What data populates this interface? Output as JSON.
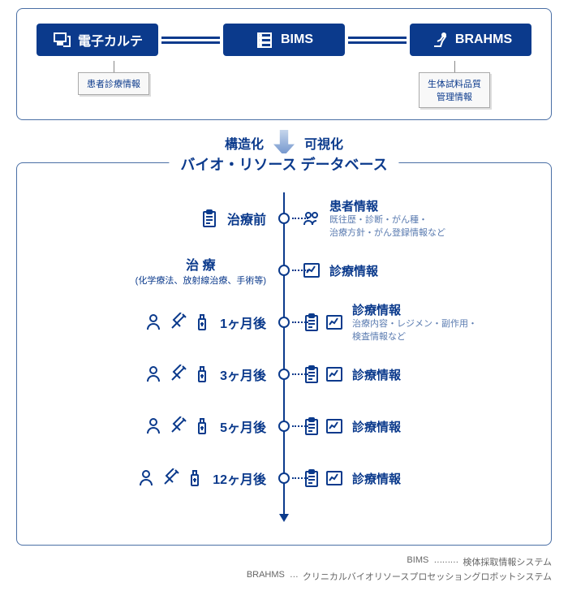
{
  "colors": {
    "primary": "#0b3a8c",
    "border": "#4a6fa5",
    "sub": "#5a7bb0",
    "bg": "#ffffff"
  },
  "top": {
    "systems": [
      {
        "label": "電子カルテ",
        "icon": "pc",
        "sub": "患者診療情報"
      },
      {
        "label": "BIMS",
        "icon": "server",
        "sub": null
      },
      {
        "label": "BRAHMS",
        "icon": "robot",
        "sub": "生体試料品質\n管理情報"
      }
    ]
  },
  "mid": {
    "left": "構造化",
    "right": "可視化"
  },
  "db": {
    "title": "バイオ・リソース データベース",
    "rows": [
      {
        "stage": "治療前",
        "sub": null,
        "leftIcons": [
          "clipboard"
        ],
        "rightIcons": [
          "people"
        ],
        "rtitle": "患者情報",
        "rdesc": "既往歴・診断・がん種・\n治療方針・がん登録情報など"
      },
      {
        "stage": "治 療",
        "sub": "(化学療法、放射線治療、手術等)",
        "leftIcons": [],
        "rightIcons": [
          "chart"
        ],
        "rtitle": "診療情報",
        "rdesc": null
      },
      {
        "stage": "1ヶ月後",
        "sub": null,
        "leftIcons": [
          "person",
          "syringe",
          "bottle"
        ],
        "rightIcons": [
          "clipboard",
          "chart"
        ],
        "rtitle": "診療情報",
        "rdesc": "治療内容・レジメン・副作用・\n検査情報など"
      },
      {
        "stage": "3ヶ月後",
        "sub": null,
        "leftIcons": [
          "person",
          "syringe",
          "bottle"
        ],
        "rightIcons": [
          "clipboard",
          "chart"
        ],
        "rtitle": "診療情報",
        "rdesc": null
      },
      {
        "stage": "5ヶ月後",
        "sub": null,
        "leftIcons": [
          "person",
          "syringe",
          "bottle"
        ],
        "rightIcons": [
          "clipboard",
          "chart"
        ],
        "rtitle": "診療情報",
        "rdesc": null
      },
      {
        "stage": "12ヶ月後",
        "sub": null,
        "leftIcons": [
          "person",
          "syringe",
          "bottle"
        ],
        "rightIcons": [
          "clipboard",
          "chart"
        ],
        "rtitle": "診療情報",
        "rdesc": null
      }
    ]
  },
  "legend": [
    {
      "key": "BIMS",
      "dots": "………",
      "val": "検体採取情報システム"
    },
    {
      "key": "BRAHMS",
      "dots": "…",
      "val": "クリニカルバイオリソースプロセッショングロボットシステム"
    }
  ]
}
